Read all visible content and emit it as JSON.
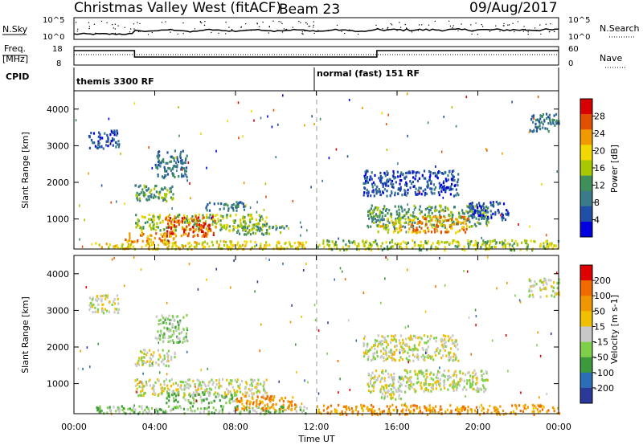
{
  "header": {
    "title": "Christmas Valley West (fitACF)",
    "beam": "Beam 23",
    "date": "09/Aug/2017"
  },
  "top_panels": {
    "nsky_label": "N.Sky",
    "nsky_ticks_left": [
      "10^5",
      "10^0"
    ],
    "nsky_ticks_right": [
      "10^5",
      "10^0"
    ],
    "nsearch_label": "N.Search",
    "freq_label_line1": "Freq.",
    "freq_label_line2": "[MHz]",
    "freq_ticks": [
      "18",
      "8"
    ],
    "nave_ticks": [
      "60",
      "0"
    ],
    "nave_label": "Nave",
    "cpid_label": "CPID",
    "cpid_1": "themis 3300 RF",
    "cpid_2": "normal (fast) 151 RF"
  },
  "colors": {
    "power_scale": [
      "#0000e0",
      "#1f4fa6",
      "#3a7a8a",
      "#3f8f5a",
      "#a8c800",
      "#f0d800",
      "#f09a00",
      "#e05000",
      "#d80000"
    ],
    "velocity_scale": [
      "#2b3a9a",
      "#2c6db8",
      "#3c9a3c",
      "#7ed04a",
      "#c8c8c8",
      "#f0c000",
      "#f09600",
      "#f06a00",
      "#e00000"
    ]
  },
  "chart_data": [
    {
      "type": "heatmap",
      "name": "power",
      "xlabel": "Time UT",
      "ylabel": "Slant Range [km]",
      "x_ticks": [
        "00:00",
        "04:00",
        "08:00",
        "12:00",
        "16:00",
        "20:00",
        "00:00"
      ],
      "x_range_hours": [
        0,
        24
      ],
      "y_ticks": [
        1000,
        2000,
        3000,
        4000
      ],
      "y_range_km": [
        180,
        4500
      ],
      "colorbar_label": "Power [dB]",
      "colorbar_ticks": [
        4,
        8,
        12,
        16,
        20,
        24,
        28
      ],
      "colorbar_range": [
        0,
        32
      ],
      "patches": [
        {
          "t0": 0.7,
          "t1": 2.2,
          "r0": 2950,
          "r1": 3450,
          "level": 1
        },
        {
          "t0": 3.0,
          "t1": 5.0,
          "r0": 1500,
          "r1": 1950,
          "level": 3
        },
        {
          "t0": 4.0,
          "t1": 5.6,
          "r0": 2150,
          "r1": 2900,
          "level": 2
        },
        {
          "t0": 3.0,
          "t1": 9.5,
          "r0": 700,
          "r1": 1150,
          "level": 4
        },
        {
          "t0": 4.5,
          "t1": 7.0,
          "r0": 550,
          "r1": 1100,
          "level": 7
        },
        {
          "t0": 2.5,
          "t1": 5.0,
          "r0": 400,
          "r1": 650,
          "level": 6
        },
        {
          "t0": 1.0,
          "t1": 11.5,
          "r0": 200,
          "r1": 420,
          "level": 5
        },
        {
          "t0": 6.5,
          "t1": 8.5,
          "r0": 1250,
          "r1": 1500,
          "level": 2
        },
        {
          "t0": 8.0,
          "t1": 10.5,
          "r0": 600,
          "r1": 900,
          "level": 3
        },
        {
          "t0": 12.0,
          "t1": 24.0,
          "r0": 180,
          "r1": 450,
          "level": 4
        },
        {
          "t0": 14.3,
          "t1": 19.0,
          "r0": 1650,
          "r1": 2350,
          "level": 1
        },
        {
          "t0": 14.5,
          "t1": 20.5,
          "r0": 800,
          "r1": 1400,
          "level": 3
        },
        {
          "t0": 16.5,
          "t1": 19.5,
          "r0": 650,
          "r1": 1100,
          "level": 6
        },
        {
          "t0": 15.0,
          "t1": 16.2,
          "r0": 650,
          "r1": 1050,
          "level": 5
        },
        {
          "t0": 22.5,
          "t1": 24.0,
          "r0": 3400,
          "r1": 3900,
          "level": 2
        },
        {
          "t0": 19.5,
          "t1": 21.5,
          "r0": 1000,
          "r1": 1500,
          "level": 1
        }
      ]
    },
    {
      "type": "heatmap",
      "name": "velocity",
      "xlabel": "Time UT",
      "ylabel": "Slant Range [km]",
      "x_ticks": [
        "00:00",
        "04:00",
        "08:00",
        "12:00",
        "16:00",
        "20:00",
        "00:00"
      ],
      "x_range_hours": [
        0,
        24
      ],
      "y_ticks": [
        1000,
        2000,
        3000,
        4000
      ],
      "y_range_km": [
        180,
        4500
      ],
      "colorbar_label": "Velocity [m s-1]",
      "colorbar_ticks": [
        200,
        100,
        50,
        15,
        -15,
        -50,
        -100,
        -200
      ],
      "patches": [
        {
          "t0": 0.7,
          "t1": 2.2,
          "r0": 2950,
          "r1": 3450,
          "level": 4
        },
        {
          "t0": 3.0,
          "t1": 5.0,
          "r0": 1500,
          "r1": 1950,
          "level": 4
        },
        {
          "t0": 4.0,
          "t1": 5.6,
          "r0": 2150,
          "r1": 2900,
          "level": 3
        },
        {
          "t0": 3.0,
          "t1": 9.5,
          "r0": 700,
          "r1": 1150,
          "level": 4
        },
        {
          "t0": 4.5,
          "t1": 8.0,
          "r0": 500,
          "r1": 800,
          "level": 3
        },
        {
          "t0": 1.0,
          "t1": 11.5,
          "r0": 200,
          "r1": 420,
          "level": 3
        },
        {
          "t0": 8.0,
          "t1": 11.0,
          "r0": 300,
          "r1": 700,
          "level": 6
        },
        {
          "t0": 12.0,
          "t1": 24.0,
          "r0": 180,
          "r1": 450,
          "level": 6
        },
        {
          "t0": 14.3,
          "t1": 19.0,
          "r0": 1650,
          "r1": 2350,
          "level": 4
        },
        {
          "t0": 14.5,
          "t1": 20.5,
          "r0": 800,
          "r1": 1400,
          "level": 4
        },
        {
          "t0": 15.0,
          "t1": 16.2,
          "r0": 600,
          "r1": 1000,
          "level": 4
        },
        {
          "t0": 22.5,
          "t1": 24.0,
          "r0": 3400,
          "r1": 3900,
          "level": 4
        }
      ]
    }
  ]
}
